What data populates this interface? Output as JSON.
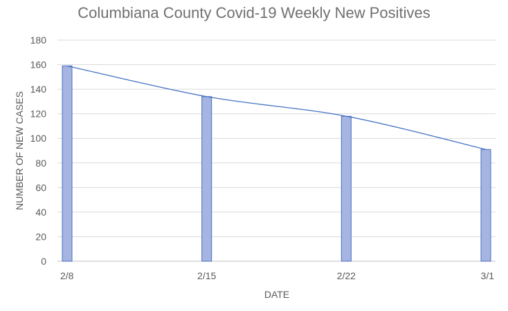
{
  "chart_data": {
    "type": "bar",
    "title": "Columbiana County Covid-19 Weekly New Positives",
    "xlabel": "DATE",
    "ylabel": "NUMBER OF NEW CASES",
    "categories": [
      "2/8",
      "2/15",
      "2/22",
      "3/1"
    ],
    "values": [
      159,
      134,
      118,
      91
    ],
    "trendline": [
      159,
      134,
      118,
      91
    ],
    "ylim": [
      0,
      180
    ],
    "yticks": [
      0,
      20,
      40,
      60,
      80,
      100,
      120,
      140,
      160,
      180
    ],
    "grid": true,
    "legend": "none",
    "colors": {
      "bar_fill": "#a5b4e0",
      "bar_stroke": "#4a6fbf",
      "line": "#4472c4",
      "grid": "#d9d9d9",
      "axis": "#bfbfbf"
    }
  }
}
